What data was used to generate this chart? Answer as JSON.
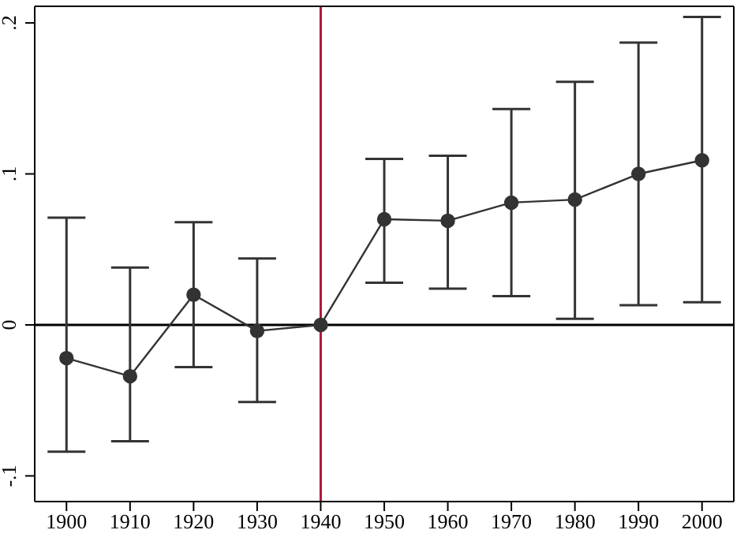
{
  "chart_data": {
    "type": "line",
    "x": [
      1900,
      1910,
      1920,
      1930,
      1940,
      1950,
      1960,
      1970,
      1980,
      1990,
      2000
    ],
    "series": [
      {
        "color": "#333333",
        "values": [
          -0.022,
          -0.034,
          0.02,
          -0.004,
          0,
          0.07,
          0.069,
          0.081,
          0.083,
          0.1,
          0.109
        ],
        "errors": [
          [
            -0.084,
            0.071
          ],
          [
            -0.077,
            0.038
          ],
          [
            -0.028,
            0.068
          ],
          [
            -0.051,
            0.044
          ],
          null,
          [
            0.028,
            0.11
          ],
          [
            0.024,
            0.112
          ],
          [
            0.019,
            0.143
          ],
          [
            0.004,
            0.161
          ],
          [
            0.013,
            0.187
          ],
          [
            0.015,
            0.204
          ]
        ]
      }
    ],
    "xlim": [
      1895,
      2005
    ],
    "xticks": [
      1900,
      1910,
      1920,
      1930,
      1940,
      1950,
      1960,
      1970,
      1980,
      1990,
      2000
    ],
    "ylim": [
      -0.117,
      0.211
    ],
    "yticks": [
      {
        "value": -0.1,
        "label": "-.1"
      },
      {
        "value": 0,
        "label": "0"
      },
      {
        "value": 0.1,
        "label": ".1"
      },
      {
        "value": 0.2,
        "label": ".2"
      }
    ],
    "ref_lines": [
      {
        "axis": "y",
        "value": 0,
        "color": "#000000"
      },
      {
        "axis": "x",
        "value": 1940,
        "color": "#b0163a"
      }
    ],
    "marker": "circle"
  }
}
